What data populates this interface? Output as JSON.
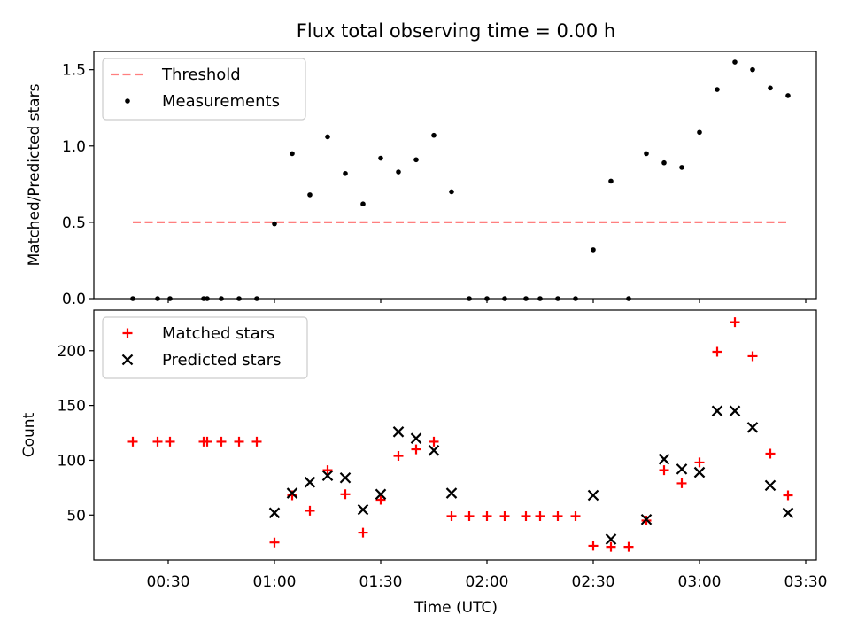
{
  "title": "Flux total observing time = 0.00 h",
  "x_axis": {
    "label": "Time (UTC)",
    "ticks": [
      {
        "value": 30,
        "label": "00:30"
      },
      {
        "value": 60,
        "label": "01:00"
      },
      {
        "value": 90,
        "label": "01:30"
      },
      {
        "value": 120,
        "label": "02:00"
      },
      {
        "value": 150,
        "label": "02:30"
      },
      {
        "value": 180,
        "label": "03:00"
      },
      {
        "value": 210,
        "label": "03:30"
      }
    ],
    "range": [
      9,
      213
    ]
  },
  "chart_data": [
    {
      "type": "scatter",
      "panel": "top",
      "ylabel": "Matched/Predicted stars",
      "ylim": [
        0,
        1.62
      ],
      "yticks": [
        {
          "value": 0.0,
          "label": "0.0"
        },
        {
          "value": 0.5,
          "label": "0.5"
        },
        {
          "value": 1.0,
          "label": "1.0"
        },
        {
          "value": 1.5,
          "label": "1.5"
        }
      ],
      "legend": {
        "placement": "upper left",
        "entries": [
          "Threshold",
          "Measurements"
        ]
      },
      "threshold": {
        "name": "Threshold",
        "value": 0.5,
        "x_range": [
          20,
          205
        ],
        "color": "#ff7f7f"
      },
      "series": [
        {
          "name": "Measurements",
          "color": "#000000",
          "marker": "dot",
          "points": [
            [
              20,
              0.0
            ],
            [
              27,
              0.0
            ],
            [
              30.5,
              0.0
            ],
            [
              40,
              0.0
            ],
            [
              41,
              0.0
            ],
            [
              45,
              0.0
            ],
            [
              50,
              0.0
            ],
            [
              55,
              0.0
            ],
            [
              60,
              0.49
            ],
            [
              65,
              0.95
            ],
            [
              70,
              0.68
            ],
            [
              75,
              1.06
            ],
            [
              80,
              0.82
            ],
            [
              85,
              0.62
            ],
            [
              90,
              0.92
            ],
            [
              95,
              0.83
            ],
            [
              100,
              0.91
            ],
            [
              105,
              1.07
            ],
            [
              110,
              0.7
            ],
            [
              115,
              0.0
            ],
            [
              120,
              0.0
            ],
            [
              125,
              0.0
            ],
            [
              131,
              0.0
            ],
            [
              135,
              0.0
            ],
            [
              140,
              0.0
            ],
            [
              145,
              0.0
            ],
            [
              150,
              0.32
            ],
            [
              155,
              0.77
            ],
            [
              160,
              0.0
            ],
            [
              165,
              0.95
            ],
            [
              170,
              0.89
            ],
            [
              175,
              0.86
            ],
            [
              180,
              1.09
            ],
            [
              185,
              1.37
            ],
            [
              190,
              1.55
            ],
            [
              195,
              1.5
            ],
            [
              200,
              1.38
            ],
            [
              205,
              1.33
            ]
          ]
        }
      ]
    },
    {
      "type": "scatter",
      "panel": "bottom",
      "ylabel": "Count",
      "ylim": [
        9,
        237
      ],
      "yticks": [
        {
          "value": 50,
          "label": "50"
        },
        {
          "value": 100,
          "label": "100"
        },
        {
          "value": 150,
          "label": "150"
        },
        {
          "value": 200,
          "label": "200"
        }
      ],
      "legend": {
        "placement": "upper left",
        "entries": [
          "Matched stars",
          "Predicted stars"
        ]
      },
      "series": [
        {
          "name": "Matched stars",
          "color": "#ff0000",
          "marker": "plus",
          "points": [
            [
              20,
              117
            ],
            [
              27,
              117
            ],
            [
              30.5,
              117
            ],
            [
              40,
              117
            ],
            [
              41,
              117
            ],
            [
              45,
              117
            ],
            [
              50,
              117
            ],
            [
              55,
              117
            ],
            [
              60,
              25
            ],
            [
              65,
              68
            ],
            [
              70,
              54
            ],
            [
              75,
              91
            ],
            [
              80,
              69
            ],
            [
              85,
              34
            ],
            [
              90,
              64
            ],
            [
              95,
              104
            ],
            [
              100,
              110
            ],
            [
              105,
              117
            ],
            [
              110,
              49
            ],
            [
              115,
              49
            ],
            [
              120,
              49
            ],
            [
              125,
              49
            ],
            [
              131,
              49
            ],
            [
              135,
              49
            ],
            [
              140,
              49
            ],
            [
              145,
              49
            ],
            [
              150,
              22
            ],
            [
              155,
              21
            ],
            [
              160,
              21
            ],
            [
              165,
              45
            ],
            [
              170,
              91
            ],
            [
              175,
              79
            ],
            [
              180,
              98
            ],
            [
              185,
              199
            ],
            [
              190,
              226
            ],
            [
              195,
              195
            ],
            [
              200,
              106
            ],
            [
              205,
              68
            ]
          ]
        },
        {
          "name": "Predicted stars",
          "color": "#000000",
          "marker": "x",
          "points": [
            [
              60,
              52
            ],
            [
              65,
              70
            ],
            [
              70,
              80
            ],
            [
              75,
              86
            ],
            [
              80,
              84
            ],
            [
              85,
              55
            ],
            [
              90,
              69
            ],
            [
              95,
              126
            ],
            [
              100,
              120
            ],
            [
              105,
              109
            ],
            [
              110,
              70
            ],
            [
              150,
              68
            ],
            [
              155,
              28
            ],
            [
              165,
              46
            ],
            [
              170,
              101
            ],
            [
              175,
              92
            ],
            [
              180,
              89
            ],
            [
              185,
              145
            ],
            [
              190,
              145
            ],
            [
              195,
              130
            ],
            [
              200,
              77
            ],
            [
              205,
              52
            ]
          ]
        }
      ]
    }
  ]
}
